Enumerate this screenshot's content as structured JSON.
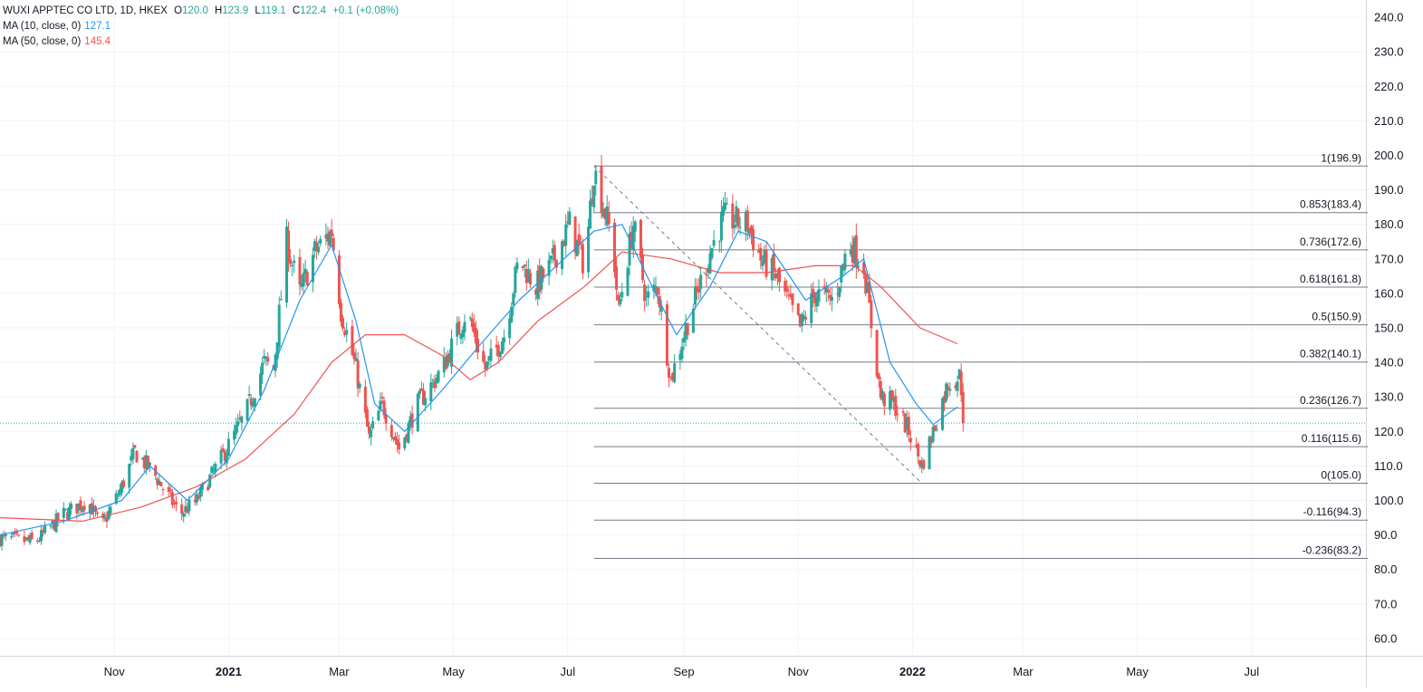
{
  "legend": {
    "symbol": "WUXI APPTEC CO LTD, 1D, HKEX",
    "o_label": "O",
    "o_value": "120.0",
    "h_label": "H",
    "h_value": "123.9",
    "l_label": "L",
    "l_value": "119.1",
    "c_label": "C",
    "c_value": "122.4",
    "change": "+0.1 (+0.08%)",
    "ma10_label": "MA (10, close, 0)",
    "ma10_value": "127.1",
    "ma50_label": "MA (50, close, 0)",
    "ma50_value": "145.4"
  },
  "colors": {
    "up": "#26a69a",
    "down": "#ef5350",
    "ma10": "#2196f3",
    "ma50": "#ef5350",
    "fib_line": "#787b86",
    "grid": "#f0f3fa",
    "price_line": "#26a69a",
    "text": "#131722"
  },
  "chart_data": {
    "type": "candlestick",
    "x_start": "2020-09-01",
    "x_end": "2022-08-31",
    "ylim": [
      55,
      245
    ],
    "y_ticks": [
      60,
      70,
      80,
      90,
      100,
      110,
      120,
      130,
      140,
      150,
      160,
      170,
      180,
      190,
      200,
      210,
      220,
      230,
      240
    ],
    "y_tick_labels": [
      "60.0",
      "70.0",
      "80.0",
      "90.0",
      "100.0",
      "110.0",
      "120.0",
      "130.0",
      "140.0",
      "150.0",
      "160.0",
      "170.0",
      "180.0",
      "190.0",
      "200.0",
      "210.0",
      "220.0",
      "230.0",
      "240.0"
    ],
    "x_ticks": [
      {
        "date": "2020-11-01",
        "label": "Nov",
        "bold": false
      },
      {
        "date": "2021-01-01",
        "label": "2021",
        "bold": true
      },
      {
        "date": "2021-03-01",
        "label": "Mar",
        "bold": false
      },
      {
        "date": "2021-05-01",
        "label": "May",
        "bold": false
      },
      {
        "date": "2021-07-01",
        "label": "Jul",
        "bold": false
      },
      {
        "date": "2021-09-01",
        "label": "Sep",
        "bold": false
      },
      {
        "date": "2021-11-01",
        "label": "Nov",
        "bold": false
      },
      {
        "date": "2022-01-01",
        "label": "2022",
        "bold": true
      },
      {
        "date": "2022-03-01",
        "label": "Mar",
        "bold": false
      },
      {
        "date": "2022-05-01",
        "label": "May",
        "bold": false
      },
      {
        "date": "2022-07-01",
        "label": "Jul",
        "bold": false
      }
    ],
    "last_price": 122.4,
    "close_path": [
      [
        "2020-09-01",
        89
      ],
      [
        "2020-09-20",
        88
      ],
      [
        "2020-10-05",
        96
      ],
      [
        "2020-10-18",
        100
      ],
      [
        "2020-10-25",
        92
      ],
      [
        "2020-11-05",
        104
      ],
      [
        "2020-11-12",
        114
      ],
      [
        "2020-11-22",
        108
      ],
      [
        "2020-12-06",
        96
      ],
      [
        "2020-12-15",
        100
      ],
      [
        "2020-12-28",
        112
      ],
      [
        "2021-01-10",
        125
      ],
      [
        "2021-01-20",
        140
      ],
      [
        "2021-01-25",
        138
      ],
      [
        "2021-02-01",
        175
      ],
      [
        "2021-02-08",
        160
      ],
      [
        "2021-02-16",
        172
      ],
      [
        "2021-02-25",
        178
      ],
      [
        "2021-03-02",
        155
      ],
      [
        "2021-03-10",
        138
      ],
      [
        "2021-03-17",
        118
      ],
      [
        "2021-03-24",
        128
      ],
      [
        "2021-04-02",
        115
      ],
      [
        "2021-04-12",
        128
      ],
      [
        "2021-04-25",
        138
      ],
      [
        "2021-05-08",
        155
      ],
      [
        "2021-05-18",
        138
      ],
      [
        "2021-05-28",
        148
      ],
      [
        "2021-06-05",
        170
      ],
      [
        "2021-06-14",
        162
      ],
      [
        "2021-06-22",
        168
      ],
      [
        "2021-07-02",
        180
      ],
      [
        "2021-07-10",
        168
      ],
      [
        "2021-07-15",
        196
      ],
      [
        "2021-07-25",
        175
      ],
      [
        "2021-07-28",
        155
      ],
      [
        "2021-08-05",
        180
      ],
      [
        "2021-08-12",
        158
      ],
      [
        "2021-08-18",
        162
      ],
      [
        "2021-08-25",
        135
      ],
      [
        "2021-09-02",
        150
      ],
      [
        "2021-09-08",
        160
      ],
      [
        "2021-09-15",
        172
      ],
      [
        "2021-09-22",
        182
      ],
      [
        "2021-10-05",
        180
      ],
      [
        "2021-10-12",
        170
      ],
      [
        "2021-10-20",
        165
      ],
      [
        "2021-11-02",
        150
      ],
      [
        "2021-11-10",
        160
      ],
      [
        "2021-11-20",
        158
      ],
      [
        "2021-11-28",
        175
      ],
      [
        "2021-12-06",
        168
      ],
      [
        "2021-12-15",
        130
      ],
      [
        "2021-12-22",
        128
      ],
      [
        "2021-12-30",
        120
      ],
      [
        "2022-01-06",
        110
      ],
      [
        "2022-01-12",
        120
      ],
      [
        "2022-01-20",
        134
      ],
      [
        "2022-01-26",
        136
      ],
      [
        "2022-01-30",
        122.4
      ]
    ],
    "ma10_path": [
      [
        "2020-09-01",
        90
      ],
      [
        "2020-10-05",
        94
      ],
      [
        "2020-11-05",
        100
      ],
      [
        "2020-11-20",
        110
      ],
      [
        "2020-12-10",
        100
      ],
      [
        "2021-01-01",
        112
      ],
      [
        "2021-01-20",
        132
      ],
      [
        "2021-02-08",
        158
      ],
      [
        "2021-02-25",
        174
      ],
      [
        "2021-03-10",
        152
      ],
      [
        "2021-03-20",
        128
      ],
      [
        "2021-04-05",
        120
      ],
      [
        "2021-04-25",
        132
      ],
      [
        "2021-05-15",
        145
      ],
      [
        "2021-06-05",
        158
      ],
      [
        "2021-06-25",
        168
      ],
      [
        "2021-07-15",
        178
      ],
      [
        "2021-07-30",
        180
      ],
      [
        "2021-08-15",
        162
      ],
      [
        "2021-08-28",
        148
      ],
      [
        "2021-09-15",
        162
      ],
      [
        "2021-09-30",
        178
      ],
      [
        "2021-10-15",
        175
      ],
      [
        "2021-11-05",
        158
      ],
      [
        "2021-11-25",
        165
      ],
      [
        "2021-12-06",
        170
      ],
      [
        "2021-12-20",
        140
      ],
      [
        "2022-01-03",
        128
      ],
      [
        "2022-01-12",
        122
      ],
      [
        "2022-01-25",
        127.1
      ]
    ],
    "ma50_path": [
      [
        "2020-09-01",
        95
      ],
      [
        "2020-10-15",
        94
      ],
      [
        "2020-11-15",
        98
      ],
      [
        "2020-12-15",
        104
      ],
      [
        "2021-01-10",
        112
      ],
      [
        "2021-02-05",
        125
      ],
      [
        "2021-02-25",
        140
      ],
      [
        "2021-03-15",
        148
      ],
      [
        "2021-04-05",
        148
      ],
      [
        "2021-04-25",
        142
      ],
      [
        "2021-05-10",
        135
      ],
      [
        "2021-05-25",
        140
      ],
      [
        "2021-06-15",
        152
      ],
      [
        "2021-07-10",
        162
      ],
      [
        "2021-07-30",
        172
      ],
      [
        "2021-08-25",
        170
      ],
      [
        "2021-09-20",
        166
      ],
      [
        "2021-10-15",
        166
      ],
      [
        "2021-11-10",
        168
      ],
      [
        "2021-12-01",
        168
      ],
      [
        "2021-12-15",
        162
      ],
      [
        "2022-01-05",
        150
      ],
      [
        "2022-01-25",
        145.4
      ]
    ],
    "fib": {
      "x_start": "2021-07-15",
      "x_end": "2022-09-01",
      "trend_from": [
        "2021-07-15",
        196.9
      ],
      "trend_to": [
        "2022-01-06",
        105.0
      ],
      "levels": [
        {
          "ratio": "1",
          "value": 196.9,
          "label": "1(196.9)"
        },
        {
          "ratio": "0.853",
          "value": 183.4,
          "label": "0.853(183.4)"
        },
        {
          "ratio": "0.736",
          "value": 172.6,
          "label": "0.736(172.6)"
        },
        {
          "ratio": "0.618",
          "value": 161.8,
          "label": "0.618(161.8)"
        },
        {
          "ratio": "0.5",
          "value": 150.9,
          "label": "0.5(150.9)"
        },
        {
          "ratio": "0.382",
          "value": 140.1,
          "label": "0.382(140.1)"
        },
        {
          "ratio": "0.236",
          "value": 126.7,
          "label": "0.236(126.7)"
        },
        {
          "ratio": "0.116",
          "value": 115.6,
          "label": "0.116(115.6)"
        },
        {
          "ratio": "0",
          "value": 105.0,
          "label": "0(105.0)"
        },
        {
          "ratio": "-0.116",
          "value": 94.3,
          "label": "-0.116(94.3)"
        },
        {
          "ratio": "-0.236",
          "value": 83.2,
          "label": "-0.236(83.2)"
        }
      ]
    }
  }
}
